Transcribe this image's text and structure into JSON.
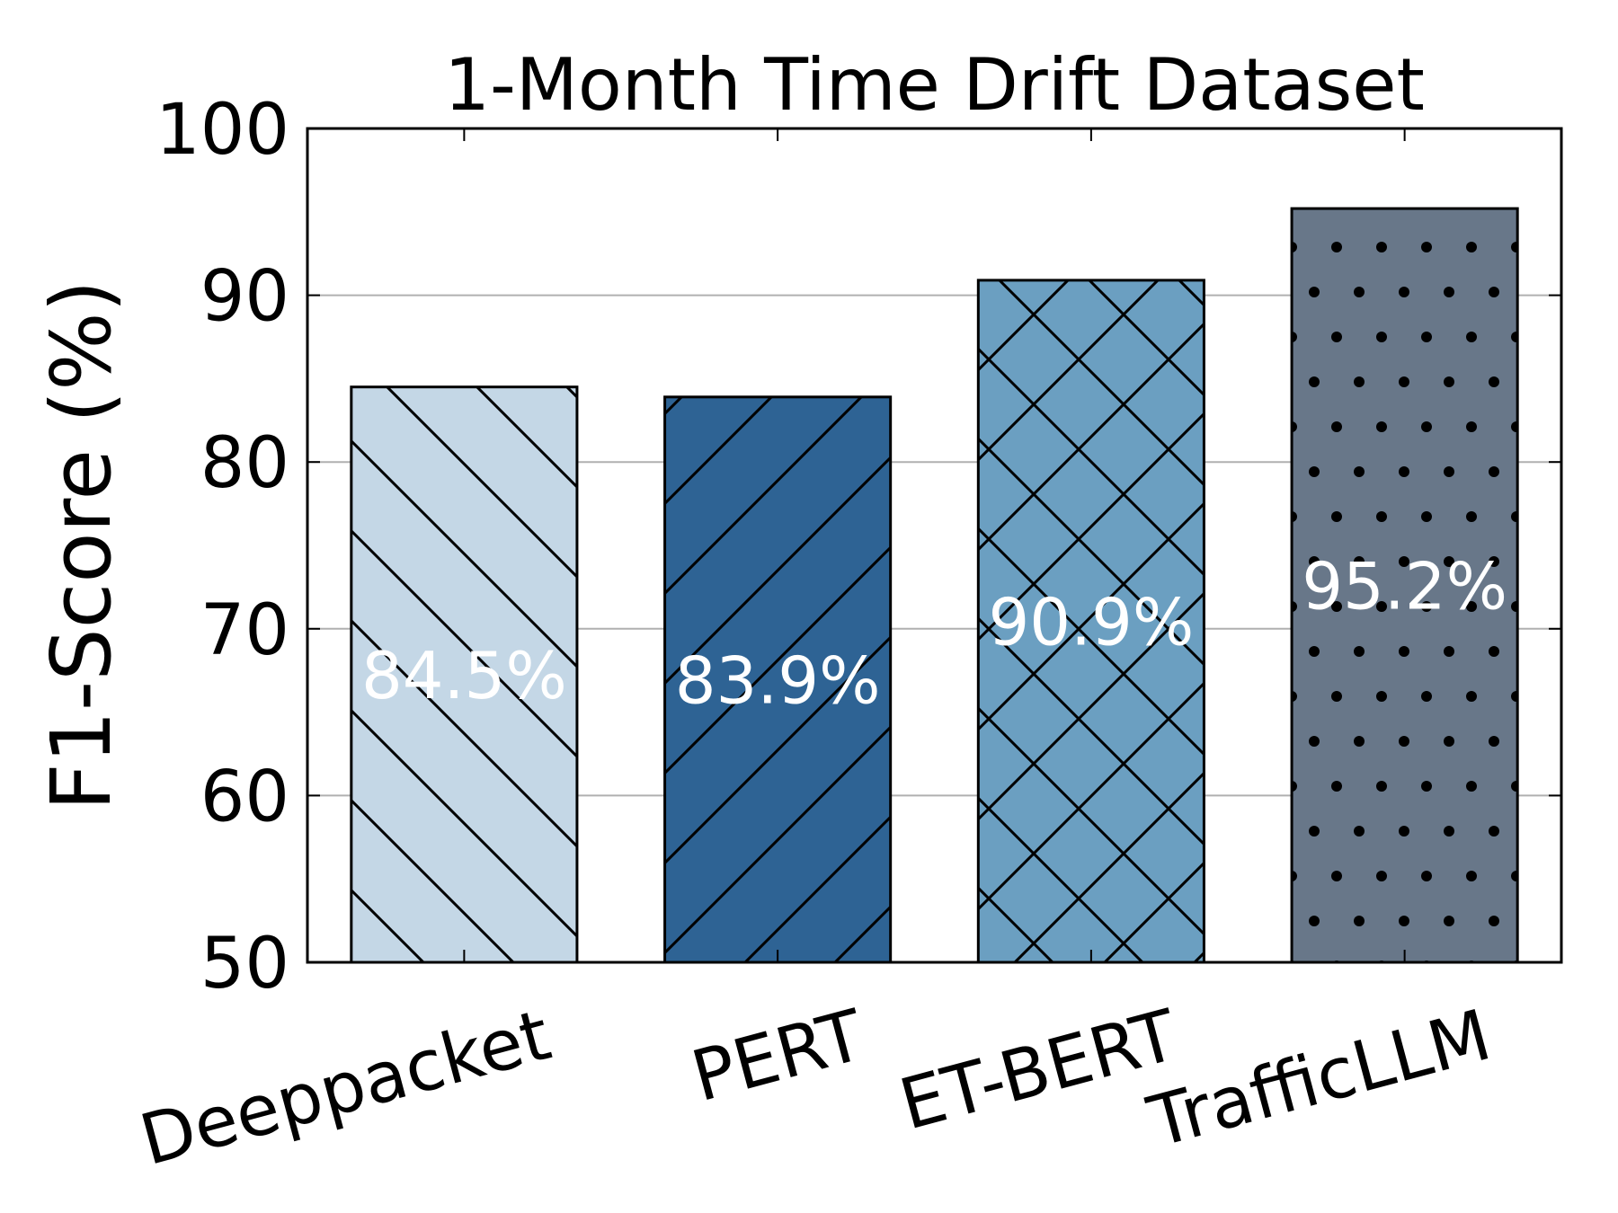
{
  "chart_data": {
    "type": "bar",
    "title": "1-Month Time Drift Dataset",
    "xlabel": "",
    "ylabel": "F1-Score (%)",
    "ylim": [
      50,
      100
    ],
    "yticks": [
      "50",
      "60",
      "70",
      "80",
      "90",
      "100"
    ],
    "grid": "horizontal",
    "categories": [
      "Deeppacket",
      "PERT",
      "ET-BERT",
      "TrafficLLM"
    ],
    "values": [
      84.5,
      83.9,
      90.9,
      95.2
    ],
    "data_labels": [
      "84.5%",
      "83.9%",
      "90.9%",
      "95.2%"
    ],
    "colors": [
      "#c4d7e6",
      "#2e6394",
      "#6b9fc1",
      "#687789"
    ],
    "hatches": [
      "backslash",
      "slash",
      "cross",
      "dots"
    ]
  }
}
